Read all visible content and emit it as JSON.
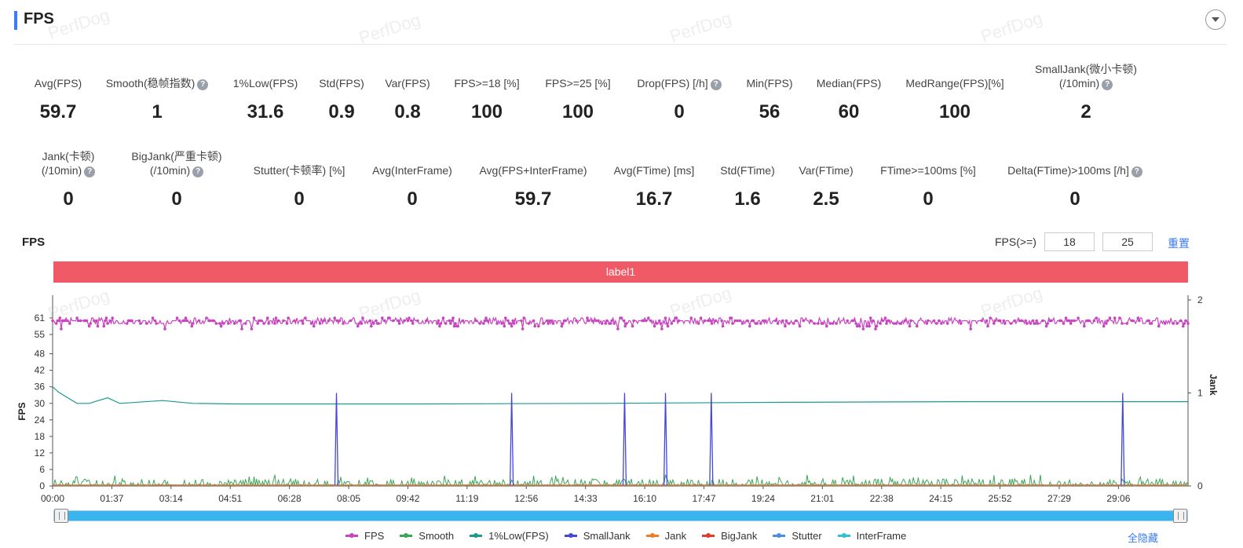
{
  "header": {
    "title": "FPS"
  },
  "stats_row1": [
    {
      "label": "Avg(FPS)",
      "value": "59.7",
      "help": false
    },
    {
      "label": "Smooth(稳帧指数)",
      "value": "1",
      "help": true
    },
    {
      "label": "1%Low(FPS)",
      "value": "31.6",
      "help": false
    },
    {
      "label": "Std(FPS)",
      "value": "0.9",
      "help": false
    },
    {
      "label": "Var(FPS)",
      "value": "0.8",
      "help": false
    },
    {
      "label": "FPS>=18 [%]",
      "value": "100",
      "help": false
    },
    {
      "label": "FPS>=25 [%]",
      "value": "100",
      "help": false
    },
    {
      "label": "Drop(FPS) [/h]",
      "value": "0",
      "help": true
    },
    {
      "label": "Min(FPS)",
      "value": "56",
      "help": false
    },
    {
      "label": "Median(FPS)",
      "value": "60",
      "help": false
    },
    {
      "label": "MedRange(FPS)[%]",
      "value": "100",
      "help": false
    },
    {
      "label": "SmallJank(微小卡顿)",
      "label2": "(/10min)",
      "value": "2",
      "help": true
    }
  ],
  "stats_row2": [
    {
      "label": "Jank(卡顿)",
      "label2": "(/10min)",
      "value": "0",
      "help": true
    },
    {
      "label": "BigJank(严重卡顿)",
      "label2": "(/10min)",
      "value": "0",
      "help": true
    },
    {
      "label": "Stutter(卡顿率) [%]",
      "value": "0",
      "help": false
    },
    {
      "label": "Avg(InterFrame)",
      "value": "0",
      "help": false
    },
    {
      "label": "Avg(FPS+InterFrame)",
      "value": "59.7",
      "help": false
    },
    {
      "label": "Avg(FTime) [ms]",
      "value": "16.7",
      "help": false
    },
    {
      "label": "Std(FTime)",
      "value": "1.6",
      "help": false
    },
    {
      "label": "Var(FTime)",
      "value": "2.5",
      "help": false
    },
    {
      "label": "FTime>=100ms [%]",
      "value": "0",
      "help": false
    },
    {
      "label": "Delta(FTime)>100ms [/h]",
      "value": "0",
      "help": true
    }
  ],
  "chart_section": {
    "title": "FPS",
    "filter_label": "FPS(>=)",
    "filter_value_1": "18",
    "filter_value_2": "25",
    "reset_label": "重置",
    "label_bar": "label1"
  },
  "chart_data": {
    "type": "line",
    "xlabel": "",
    "ylabel": "FPS",
    "ylabel_right": "Jank",
    "ylim": [
      0,
      61
    ],
    "ylim_right": [
      0,
      2
    ],
    "y_ticks": [
      0,
      6,
      12,
      18,
      24,
      30,
      36,
      42,
      48,
      55,
      61
    ],
    "y_ticks_right": [
      0,
      1,
      2
    ],
    "x_ticks": [
      "00:00",
      "01:37",
      "03:14",
      "04:51",
      "06:28",
      "08:05",
      "09:42",
      "11:19",
      "12:56",
      "14:33",
      "16:10",
      "17:47",
      "19:24",
      "21:01",
      "22:38",
      "24:15",
      "25:52",
      "27:29",
      "29:06"
    ],
    "x_range_seconds": [
      0,
      1860
    ],
    "series": [
      {
        "name": "FPS",
        "color": "#c845c1",
        "approx_values": "fluctuating 58-61, mostly 60, min 56"
      },
      {
        "name": "Smooth",
        "color": "#3aa757",
        "approx_values": "noise between 0 and 4"
      },
      {
        "name": "1%Low(FPS)",
        "color": "#1c9a8e",
        "points": [
          [
            0,
            36
          ],
          [
            10,
            34
          ],
          [
            40,
            30
          ],
          [
            60,
            30
          ],
          [
            90,
            32
          ],
          [
            110,
            30
          ],
          [
            180,
            31
          ],
          [
            230,
            30
          ],
          [
            300,
            29.8
          ],
          [
            600,
            29.8
          ],
          [
            900,
            30
          ],
          [
            1200,
            30.4
          ],
          [
            1500,
            30.6
          ],
          [
            1860,
            30.6
          ]
        ]
      },
      {
        "name": "SmallJank",
        "color": "#4348d8",
        "spikes_at_seconds": [
          465,
          752,
          937,
          1004,
          1079,
          1753
        ],
        "spike_value": 1
      },
      {
        "name": "Jank",
        "color": "#ee7d2a",
        "values": "0"
      },
      {
        "name": "BigJank",
        "color": "#e03c2a",
        "values": "0"
      },
      {
        "name": "Stutter",
        "color": "#4b8fdc",
        "values": "0"
      },
      {
        "name": "InterFrame",
        "color": "#2fc1d6",
        "values": "0"
      }
    ],
    "legend_position": "bottom",
    "grid": false
  },
  "legend_items": [
    {
      "name": "FPS",
      "color": "#c845c1"
    },
    {
      "name": "Smooth",
      "color": "#3aa757"
    },
    {
      "name": "1%Low(FPS)",
      "color": "#1c9a8e"
    },
    {
      "name": "SmallJank",
      "color": "#4348d8"
    },
    {
      "name": "Jank",
      "color": "#ee7d2a"
    },
    {
      "name": "BigJank",
      "color": "#e03c2a"
    },
    {
      "name": "Stutter",
      "color": "#4b8fdc"
    },
    {
      "name": "InterFrame",
      "color": "#2fc1d6"
    }
  ],
  "hide_all_label": "全隐藏",
  "watermark": "PerfDog"
}
